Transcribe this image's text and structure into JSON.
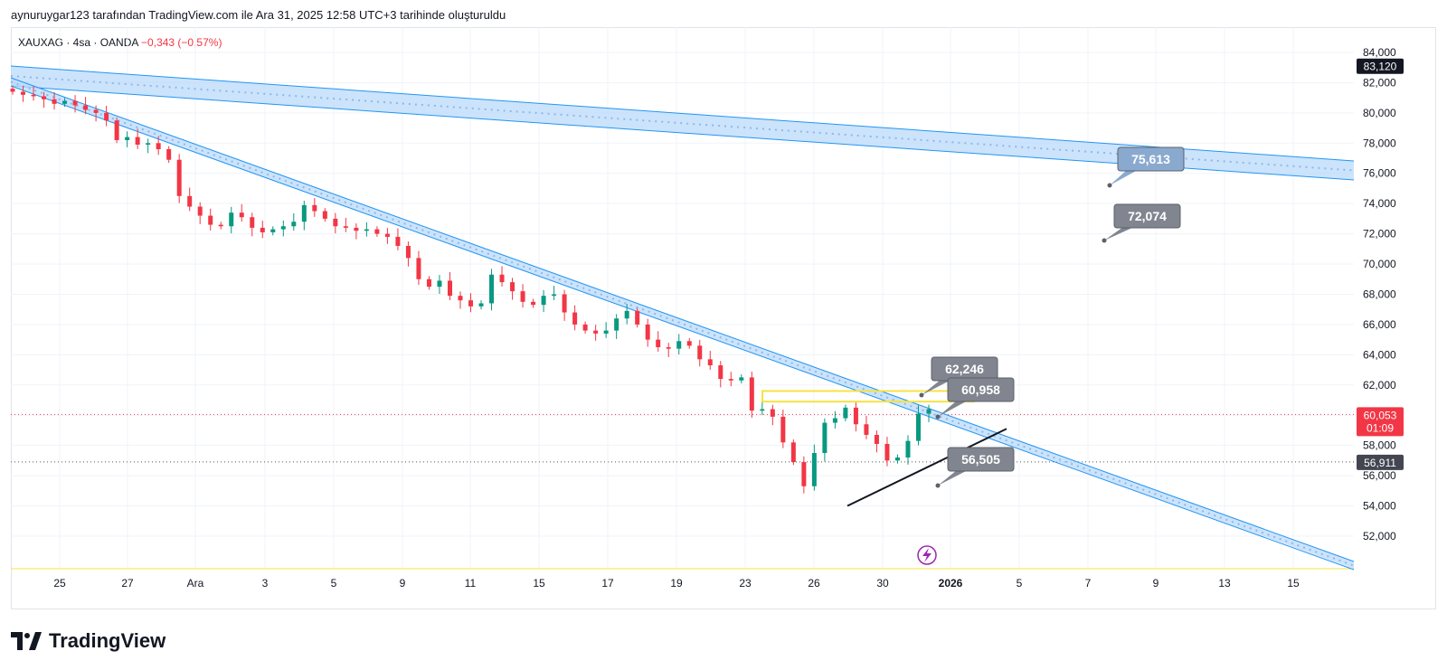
{
  "header": {
    "attribution": "aynuruygar123 tarafından TradingView.com ile Ara 31, 2025 12:58 UTC+3 tarihinde oluşturuldu"
  },
  "symbol": {
    "name": "XAUXAG · 4sa · OANDA",
    "change": "−0,343 (−0,57%)"
  },
  "footer": {
    "brand": "TradingView"
  },
  "colors": {
    "up": "#089981",
    "down": "#f23645",
    "channel": "#2196f3",
    "channel_fill": "#bbd9fb",
    "zone": "#f5e342",
    "label_bg": "#80858f",
    "axis_text": "#131722"
  },
  "chart_data": {
    "type": "candlestick",
    "x_ticks": [
      "25",
      "27",
      "Ara",
      "3",
      "5",
      "9",
      "11",
      "15",
      "17",
      "19",
      "23",
      "26",
      "30",
      "2026",
      "5",
      "7",
      "9",
      "13",
      "15"
    ],
    "y_ticks": [
      "84,000",
      "82,000",
      "80,000",
      "78,000",
      "76,000",
      "74,000",
      "72,000",
      "70,000",
      "68,000",
      "66,000",
      "64,000",
      "62,000",
      "60,000",
      "58,000",
      "56,000",
      "54,000",
      "52,000"
    ],
    "ylim": [
      51000,
      85000
    ],
    "price_labels": {
      "high": "83,120",
      "last": "60,053",
      "countdown": "01:09",
      "line": "56,911"
    },
    "callouts": [
      "75,613",
      "72,074",
      "62,246",
      "60,958",
      "56,505"
    ],
    "close_path": [
      81.4,
      81.2,
      81.1,
      80.9,
      80.6,
      80.8,
      80.5,
      80.2,
      80.0,
      79.5,
      78.2,
      78.4,
      77.9,
      78.0,
      77.6,
      76.9,
      74.5,
      73.8,
      73.2,
      72.6,
      72.5,
      73.4,
      73.1,
      72.4,
      72.1,
      72.3,
      72.5,
      72.8,
      73.9,
      73.5,
      73.0,
      72.5,
      72.4,
      72.2,
      72.3,
      72.0,
      71.8,
      71.2,
      70.4,
      69.0,
      68.5,
      68.9,
      67.9,
      67.6,
      67.2,
      67.4,
      69.3,
      68.8,
      68.2,
      67.5,
      67.3,
      67.9,
      68.0,
      66.8,
      66.0,
      65.6,
      65.4,
      65.6,
      66.4,
      66.9,
      66.0,
      65.0,
      64.5,
      64.4,
      64.9,
      64.6,
      63.7,
      63.3,
      62.4,
      62.3,
      62.5,
      60.3,
      60.4,
      59.9,
      58.2,
      56.9,
      55.3,
      57.5,
      59.5,
      59.8,
      60.5,
      59.4,
      58.7,
      58.1,
      57.0,
      57.2,
      58.3,
      60.1,
      60.4
    ],
    "series": []
  }
}
